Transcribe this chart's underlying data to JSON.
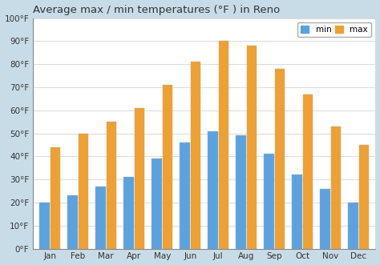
{
  "title": "Average max / min temperatures (°F ) in Reno",
  "months": [
    "Jan",
    "Feb",
    "Mar",
    "Apr",
    "May",
    "Jun",
    "Jul",
    "Aug",
    "Sep",
    "Oct",
    "Nov",
    "Dec"
  ],
  "min_temps": [
    20,
    23,
    27,
    31,
    39,
    46,
    51,
    49,
    41,
    32,
    26,
    20
  ],
  "max_temps": [
    44,
    50,
    55,
    61,
    71,
    81,
    90,
    88,
    78,
    67,
    53,
    45
  ],
  "min_color": "#5ba3e0",
  "max_color": "#f0a030",
  "background_color": "#ffffff",
  "plot_bg_color": "#ffffff",
  "ylim": [
    0,
    100
  ],
  "yticks": [
    0,
    10,
    20,
    30,
    40,
    50,
    60,
    70,
    80,
    90,
    100
  ],
  "ytick_labels": [
    "0°F",
    "10°F",
    "20°F",
    "30°F",
    "40°F",
    "50°F",
    "60°F",
    "70°F",
    "80°F",
    "90°F",
    "100°F"
  ],
  "title_fontsize": 9.5,
  "legend_labels": [
    "min",
    "max"
  ],
  "grid_color": "#dddddd",
  "outer_bg": "#c8dce8",
  "bar_width": 0.75
}
